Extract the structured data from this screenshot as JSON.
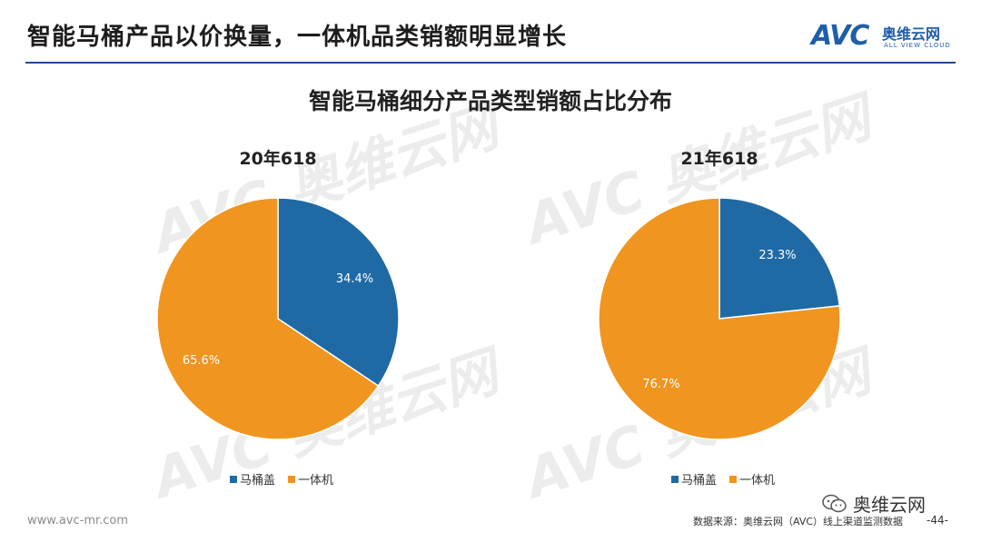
{
  "header": {
    "title": "智能马桶产品以价换量，一体机品类销额明显增长",
    "logo_avc": "AVC",
    "logo_cn": "奥维云网",
    "logo_en": "ALL VIEW CLOUD"
  },
  "colors": {
    "blue": "#1f6aa5",
    "orange": "#f0951f",
    "accent": "#1f4e8c"
  },
  "chart_data": [
    {
      "type": "pie",
      "title": "20年618",
      "categories": [
        "马桶盖",
        "一体机"
      ],
      "values": [
        34.4,
        65.6
      ],
      "labels": [
        "34.4%",
        "65.6%"
      ],
      "legend": [
        "马桶盖",
        "一体机"
      ],
      "legend_position": "bottom"
    },
    {
      "type": "pie",
      "title": "21年618",
      "categories": [
        "马桶盖",
        "一体机"
      ],
      "values": [
        23.3,
        76.7
      ],
      "labels": [
        "23.3%",
        "76.7%"
      ],
      "legend": [
        "马桶盖",
        "一体机"
      ],
      "legend_position": "bottom"
    }
  ],
  "main": {
    "chart_title": "智能马桶细分产品类型销额占比分布"
  },
  "footer": {
    "url": "www.avc-mr.com",
    "source": "数据来源：奥维云网（AVC）线上渠道监测数据",
    "page": "-44-",
    "wechat": "奥维云网"
  }
}
